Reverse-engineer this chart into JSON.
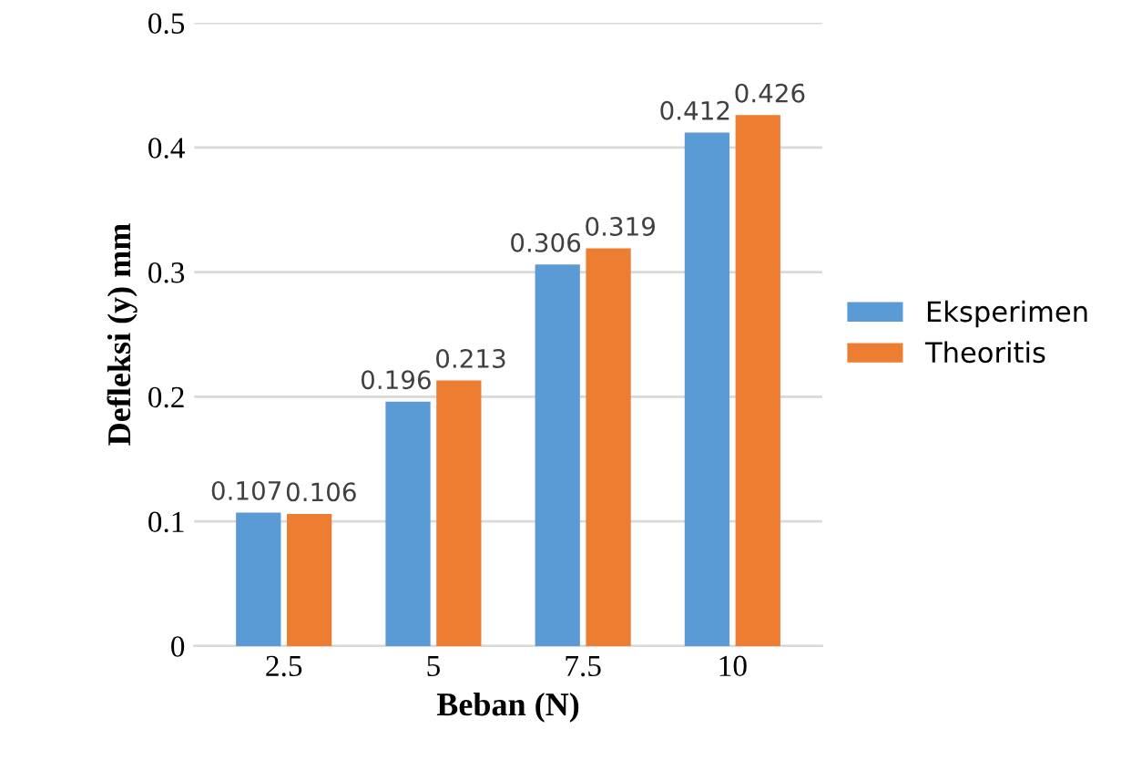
{
  "chart_data": {
    "type": "bar",
    "xlabel": "Beban (N)",
    "ylabel": "Defleksi (y) mm",
    "categories": [
      "2.5",
      "5",
      "7.5",
      "10"
    ],
    "series": [
      {
        "name": "Eksperimen",
        "color": "#5b9bd5",
        "values": [
          0.107,
          0.196,
          0.306,
          0.412
        ]
      },
      {
        "name": "Theoritis",
        "color": "#ed7d31",
        "values": [
          0.106,
          0.213,
          0.319,
          0.426
        ]
      }
    ],
    "ylim": [
      0,
      0.5
    ],
    "yticks": [
      0,
      0.1,
      0.2,
      0.3,
      0.4,
      0.5
    ],
    "grid": "y",
    "legend": "right",
    "data_labels": true
  }
}
